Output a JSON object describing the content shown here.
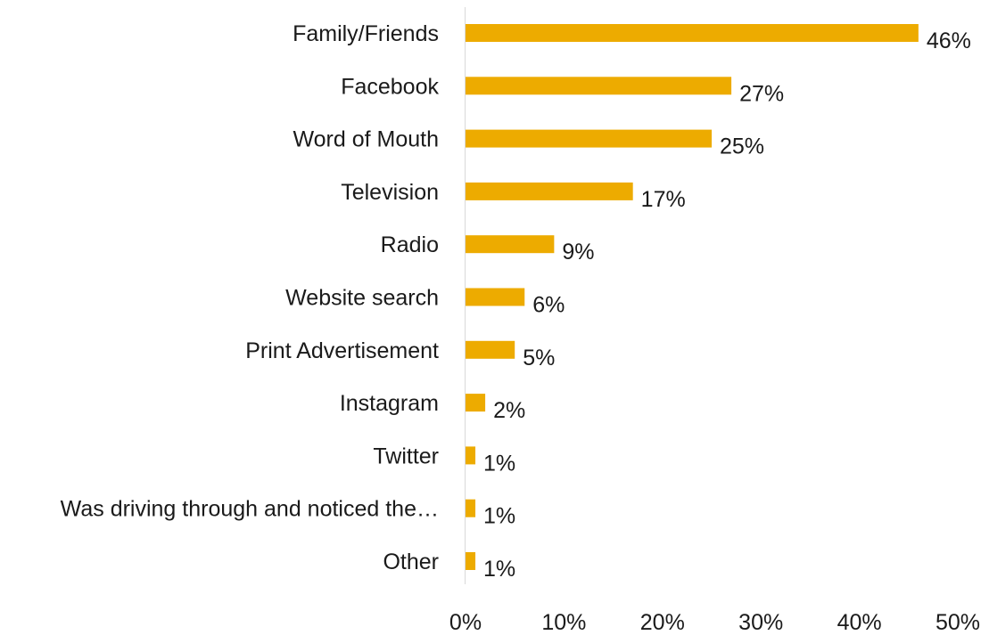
{
  "chart_data": {
    "type": "bar",
    "orientation": "horizontal",
    "categories": [
      "Family/Friends",
      "Facebook",
      "Word of Mouth",
      "Television",
      "Radio",
      "Website search",
      "Print Advertisement",
      "Instagram",
      "Twitter",
      "Was driving through and noticed the…",
      "Other"
    ],
    "values": [
      46,
      27,
      25,
      17,
      9,
      6,
      5,
      2,
      1,
      1,
      1
    ],
    "value_labels": [
      "46%",
      "27%",
      "25%",
      "17%",
      "9%",
      "6%",
      "5%",
      "2%",
      "1%",
      "1%",
      "1%"
    ],
    "xlim": [
      0,
      50
    ],
    "x_ticks": [
      0,
      10,
      20,
      30,
      40,
      50
    ],
    "x_tick_labels": [
      "0%",
      "10%",
      "20%",
      "30%",
      "40%",
      "50%"
    ],
    "title": "",
    "xlabel": "",
    "ylabel": "",
    "grid": false,
    "legend": "none",
    "bar_color": "#EDAB00",
    "axis_color": "#d9d9d9"
  }
}
